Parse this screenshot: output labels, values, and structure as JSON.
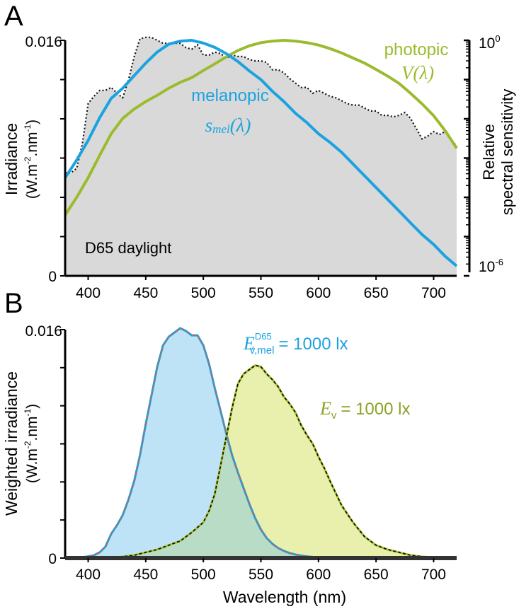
{
  "chart_data": [
    {
      "panel_label": "A",
      "type": "line",
      "ylabel": "Irradiance",
      "ylabel_units": {
        "base": "(W.m",
        "exp1": "-2",
        "mid": ".nm",
        "exp2": "-1",
        "end": ")"
      },
      "y2label": [
        "Relative",
        "spectral sensitivity"
      ],
      "xlim": [
        380,
        720
      ],
      "ylim": [
        0,
        0.016
      ],
      "ytick_labels": [
        "0",
        "0.016"
      ],
      "y2lim_log10": [
        -6,
        0
      ],
      "y2tick_labels": {
        "top": {
          "base": "10",
          "exp": "0"
        },
        "bottom": {
          "base": "10",
          "exp": "-6"
        }
      },
      "xticks": [
        400,
        450,
        500,
        550,
        600,
        650,
        700
      ],
      "xtick_labels": [
        "400",
        "450",
        "500",
        "550",
        "600",
        "650",
        "700"
      ],
      "annotation": "D65 daylight",
      "colors": {
        "melanopic": "#1aa3e0",
        "photopic": "#9bbb2e",
        "d65_fill": "#d9d9d9",
        "d65_line": "#111111"
      },
      "series": [
        {
          "name": "D65 daylight",
          "axis": "left",
          "x": [
            380,
            385,
            390,
            395,
            400,
            405,
            410,
            415,
            420,
            425,
            430,
            435,
            440,
            445,
            450,
            455,
            460,
            465,
            470,
            475,
            480,
            485,
            490,
            495,
            500,
            505,
            510,
            515,
            520,
            525,
            530,
            535,
            540,
            545,
            550,
            555,
            560,
            565,
            570,
            575,
            580,
            585,
            590,
            595,
            600,
            605,
            610,
            615,
            620,
            625,
            630,
            635,
            640,
            645,
            650,
            655,
            660,
            665,
            670,
            675,
            680,
            685,
            690,
            695,
            700,
            705,
            710,
            715,
            720
          ],
          "y": [
            0.007,
            0.007,
            0.0073,
            0.009,
            0.0117,
            0.0122,
            0.0126,
            0.0126,
            0.0128,
            0.0124,
            0.0121,
            0.0133,
            0.0149,
            0.0161,
            0.0162,
            0.0162,
            0.016,
            0.0158,
            0.0158,
            0.0158,
            0.0158,
            0.0155,
            0.0154,
            0.0157,
            0.015,
            0.015,
            0.0152,
            0.0151,
            0.0148,
            0.015,
            0.0149,
            0.0149,
            0.0147,
            0.0146,
            0.0146,
            0.0145,
            0.014,
            0.014,
            0.0138,
            0.0134,
            0.0131,
            0.0128,
            0.0128,
            0.0124,
            0.0126,
            0.0124,
            0.0122,
            0.0121,
            0.0119,
            0.0117,
            0.0116,
            0.0116,
            0.0114,
            0.0112,
            0.0112,
            0.0109,
            0.0109,
            0.0108,
            0.0109,
            0.0111,
            0.0107,
            0.01,
            0.0093,
            0.0095,
            0.0098,
            0.0096,
            0.0098,
            0.0093,
            0.0088
          ]
        },
        {
          "name": "melanopic",
          "symbol": "s",
          "subscript": "mel",
          "arg": "(λ)",
          "axis": "right",
          "x": [
            380,
            390,
            400,
            410,
            420,
            430,
            440,
            450,
            460,
            470,
            480,
            490,
            500,
            510,
            520,
            530,
            540,
            550,
            560,
            570,
            580,
            590,
            600,
            610,
            620,
            630,
            640,
            650,
            660,
            670,
            680,
            690,
            700,
            710,
            720
          ],
          "log10": [
            -3.5,
            -3.05,
            -2.55,
            -1.97,
            -1.48,
            -1.22,
            -0.9,
            -0.58,
            -0.3,
            -0.1,
            -0.02,
            0,
            -0.07,
            -0.18,
            -0.34,
            -0.54,
            -0.78,
            -1.0,
            -1.3,
            -1.56,
            -1.86,
            -2.1,
            -2.38,
            -2.6,
            -2.85,
            -3.15,
            -3.45,
            -3.75,
            -4.05,
            -4.35,
            -4.65,
            -4.95,
            -5.2,
            -5.5,
            -5.75
          ]
        },
        {
          "name": "photopic",
          "symbol": "V",
          "arg": "(λ)",
          "axis": "right",
          "x": [
            380,
            390,
            400,
            410,
            420,
            430,
            440,
            450,
            460,
            470,
            480,
            490,
            500,
            510,
            520,
            530,
            540,
            550,
            560,
            570,
            580,
            590,
            600,
            610,
            620,
            630,
            640,
            650,
            660,
            670,
            680,
            690,
            700,
            710,
            720
          ],
          "log10": [
            -4.45,
            -4.0,
            -3.5,
            -2.93,
            -2.38,
            -1.99,
            -1.75,
            -1.56,
            -1.4,
            -1.22,
            -1.07,
            -0.95,
            -0.77,
            -0.6,
            -0.42,
            -0.26,
            -0.14,
            -0.06,
            -0.02,
            0,
            -0.02,
            -0.06,
            -0.12,
            -0.21,
            -0.32,
            -0.45,
            -0.58,
            -0.74,
            -0.91,
            -1.1,
            -1.35,
            -1.62,
            -1.92,
            -2.3,
            -2.75
          ]
        }
      ]
    },
    {
      "panel_label": "B",
      "type": "area",
      "ylabel": "Weighted irradiance",
      "ylabel_units": {
        "base": "(W.m",
        "exp1": "-2",
        "mid": ".nm",
        "exp2": "-1",
        "end": ")"
      },
      "xlabel": "Wavelength (nm)",
      "xlim": [
        380,
        720
      ],
      "ylim": [
        0,
        0.016
      ],
      "ytick_labels": [
        "0",
        "0.016"
      ],
      "xticks": [
        400,
        450,
        500,
        550,
        600,
        650,
        700
      ],
      "xtick_labels": [
        "400",
        "450",
        "500",
        "550",
        "600",
        "650",
        "700"
      ],
      "colors": {
        "melanopic_fill": "#bfe3f6",
        "melanopic_line": "#1aa3e0",
        "melanopic_dash": "#e35a3c",
        "photopic_fill": "#e9f0ad",
        "photopic_line": "#a8c22e",
        "photopic_dash": "#111111",
        "overlap_fill": "#b9dcc6"
      },
      "annotations": [
        {
          "symbol": "E",
          "subscript": "v,mel",
          "superscript": "D65",
          "text": "= 1000 lx"
        },
        {
          "symbol": "E",
          "subscript": "v",
          "text": "= 1000 lx"
        }
      ],
      "series": [
        {
          "name": "melanopic",
          "x": [
            380,
            385,
            390,
            395,
            400,
            405,
            410,
            415,
            420,
            425,
            430,
            435,
            440,
            445,
            450,
            455,
            460,
            465,
            470,
            475,
            480,
            485,
            490,
            495,
            500,
            505,
            510,
            515,
            520,
            525,
            530,
            535,
            540,
            545,
            550,
            555,
            560,
            565,
            570,
            575,
            580,
            585,
            590,
            595,
            600,
            610,
            620,
            640,
            660,
            680,
            700,
            720
          ],
          "y": [
            0,
            1e-05,
            3e-05,
            6e-05,
            0.00012,
            0.0002,
            0.0004,
            0.0008,
            0.0017,
            0.0023,
            0.003,
            0.0041,
            0.0054,
            0.0072,
            0.0094,
            0.0114,
            0.0134,
            0.0149,
            0.0155,
            0.0158,
            0.0161,
            0.0159,
            0.0156,
            0.0156,
            0.0149,
            0.0136,
            0.0119,
            0.0103,
            0.0087,
            0.0072,
            0.006,
            0.0049,
            0.0038,
            0.0028,
            0.002,
            0.0014,
            0.001,
            0.0007,
            0.0005,
            0.00035,
            0.00025,
            0.00018,
            0.00012,
            8e-05,
            6e-05,
            3e-05,
            2e-05,
            1e-05,
            0,
            0,
            0,
            0
          ]
        },
        {
          "name": "photopic",
          "x": [
            380,
            390,
            400,
            410,
            420,
            430,
            440,
            450,
            460,
            470,
            480,
            490,
            500,
            505,
            510,
            515,
            520,
            525,
            530,
            535,
            540,
            545,
            550,
            555,
            560,
            565,
            570,
            575,
            580,
            585,
            590,
            595,
            600,
            605,
            610,
            620,
            630,
            640,
            650,
            660,
            670,
            680,
            690,
            700,
            710,
            720
          ],
          "y": [
            0,
            0,
            1e-05,
            2e-05,
            4e-05,
            0.0001,
            0.0002,
            0.0004,
            0.0006,
            0.0009,
            0.0012,
            0.0018,
            0.0025,
            0.0033,
            0.0045,
            0.0065,
            0.0085,
            0.0105,
            0.0122,
            0.0129,
            0.0132,
            0.0135,
            0.0134,
            0.0129,
            0.0125,
            0.012,
            0.0113,
            0.0108,
            0.0102,
            0.0093,
            0.0086,
            0.008,
            0.0071,
            0.0063,
            0.0054,
            0.0037,
            0.0025,
            0.0015,
            0.0009,
            0.0006,
            0.0004,
            0.0002,
            0.0001,
            5e-05,
            2e-05,
            0
          ]
        }
      ]
    }
  ]
}
